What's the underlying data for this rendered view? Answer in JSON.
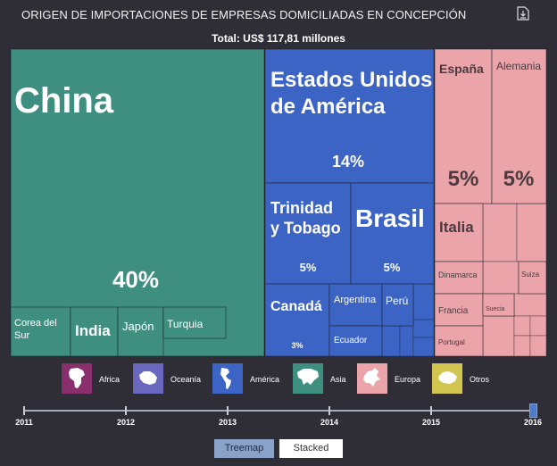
{
  "title": "ORIGEN DE IMPORTACIONES DE EMPRESAS DOMICILIADAS EN CONCEPCIÓN",
  "total": "Total: US$ 117,81 millones",
  "download_icon": "download-icon",
  "colors": {
    "Asia": "#3e8f80",
    "América": "#3c64c4",
    "Europa": "#eaa4aa",
    "África": "#8a2f6e",
    "Oceanía": "#6a67bf",
    "Otros": "#d2c550"
  },
  "chart_data": {
    "type": "treemap",
    "title": "ORIGEN DE IMPORTACIONES DE EMPRESAS DOMICILIADAS EN CONCEPCIÓN",
    "subtitle": "Total: US$ 117,81 millones",
    "unit": "%",
    "groups": [
      {
        "name": "Asia",
        "items": [
          {
            "name": "China",
            "percent": 40
          },
          {
            "name": "Corea del Sur",
            "percent": null
          },
          {
            "name": "India",
            "percent": null
          },
          {
            "name": "Japón",
            "percent": null
          },
          {
            "name": "Turquía",
            "percent": null
          }
        ]
      },
      {
        "name": "América",
        "items": [
          {
            "name": "Estados Unidos de América",
            "percent": 14
          },
          {
            "name": "Trinidad y Tobago",
            "percent": 5
          },
          {
            "name": "Brasil",
            "percent": 5
          },
          {
            "name": "Canadá",
            "percent": 3
          },
          {
            "name": "Argentina",
            "percent": null
          },
          {
            "name": "Perú",
            "percent": null
          },
          {
            "name": "Ecuador",
            "percent": null
          }
        ]
      },
      {
        "name": "Europa",
        "items": [
          {
            "name": "España",
            "percent": 5
          },
          {
            "name": "Alemania",
            "percent": 5
          },
          {
            "name": "Italia",
            "percent": null
          },
          {
            "name": "Dinamarca",
            "percent": null
          },
          {
            "name": "Suiza",
            "percent": null
          },
          {
            "name": "Francia",
            "percent": null
          },
          {
            "name": "Suecia",
            "percent": null
          },
          {
            "name": "Portugal",
            "percent": null
          }
        ]
      }
    ]
  },
  "tiles": [
    {
      "group": "Asia",
      "name": "China",
      "label": "China",
      "pct": "40%"
    },
    {
      "group": "Asia",
      "name": "Corea del Sur",
      "label": "Corea del Sur",
      "pct": ""
    },
    {
      "group": "Asia",
      "name": "India",
      "label": "India",
      "pct": ""
    },
    {
      "group": "Asia",
      "name": "Japón",
      "label": "Japón",
      "pct": ""
    },
    {
      "group": "Asia",
      "name": "Turquía",
      "label": "Turquia",
      "pct": ""
    },
    {
      "group": "América",
      "name": "Estados Unidos de América",
      "label": "Estados Unidos|de América",
      "pct": "14%"
    },
    {
      "group": "América",
      "name": "Trinidad y Tobago",
      "label": "Trinidad|y Tobago",
      "pct": "5%"
    },
    {
      "group": "América",
      "name": "Brasil",
      "label": "Brasil",
      "pct": "5%"
    },
    {
      "group": "América",
      "name": "Canadá",
      "label": "Canadá",
      "pct": "3%"
    },
    {
      "group": "América",
      "name": "Argentina",
      "label": "Argentina",
      "pct": ""
    },
    {
      "group": "América",
      "name": "Perú",
      "label": "Perú",
      "pct": ""
    },
    {
      "group": "América",
      "name": "Ecuador",
      "label": "Ecuador",
      "pct": ""
    },
    {
      "group": "Europa",
      "name": "España",
      "label": "España",
      "pct": "5%"
    },
    {
      "group": "Europa",
      "name": "Alemania",
      "label": "Alemania",
      "pct": "5%"
    },
    {
      "group": "Europa",
      "name": "Italia",
      "label": "Italia",
      "pct": ""
    },
    {
      "group": "Europa",
      "name": "Dinamarca",
      "label": "Dinamarca",
      "pct": ""
    },
    {
      "group": "Europa",
      "name": "Suiza",
      "label": "Suiza",
      "pct": ""
    },
    {
      "group": "Europa",
      "name": "Francia",
      "label": "Francia",
      "pct": ""
    },
    {
      "group": "Europa",
      "name": "Suecia",
      "label": "Suecia",
      "pct": ""
    },
    {
      "group": "Europa",
      "name": "Portugal",
      "label": "Portugal",
      "pct": ""
    }
  ],
  "legend": [
    {
      "label": "Africa",
      "icon": "africa-icon",
      "color": "#8a2f6e"
    },
    {
      "label": "Oceanía",
      "icon": "oceania-icon",
      "color": "#6a67bf"
    },
    {
      "label": "América",
      "icon": "america-icon",
      "color": "#3c64c4"
    },
    {
      "label": "Asia",
      "icon": "asia-icon",
      "color": "#3e8f80"
    },
    {
      "label": "Europa",
      "icon": "europa-icon",
      "color": "#eaa4aa"
    },
    {
      "label": "Otros",
      "icon": "otros-icon",
      "color": "#d2c550"
    }
  ],
  "timeline": {
    "years": [
      "2011",
      "2012",
      "2013",
      "2014",
      "2015",
      "2016"
    ],
    "selected": "2016"
  },
  "buttons": {
    "treemap": "Treemap",
    "stacked": "Stacked",
    "active": "Treemap"
  }
}
